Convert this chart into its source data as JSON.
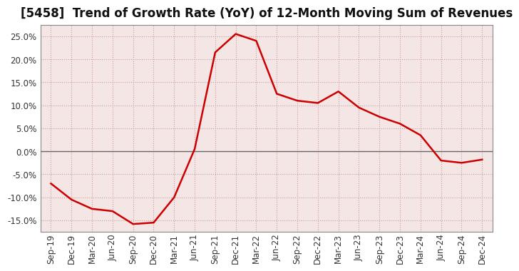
{
  "title": "[5458]  Trend of Growth Rate (YoY) of 12-Month Moving Sum of Revenues",
  "line_color": "#cc0000",
  "line_width": 1.8,
  "background_color": "#ffffff",
  "plot_bg_color": "#f5e6e6",
  "grid_color": "#cc9999",
  "zero_line_color": "#666666",
  "xlabels": [
    "Sep-19",
    "Dec-19",
    "Mar-20",
    "Jun-20",
    "Sep-20",
    "Dec-20",
    "Mar-21",
    "Jun-21",
    "Sep-21",
    "Dec-21",
    "Mar-22",
    "Jun-22",
    "Sep-22",
    "Dec-22",
    "Mar-23",
    "Jun-23",
    "Sep-23",
    "Dec-23",
    "Mar-24",
    "Jun-24",
    "Sep-24",
    "Dec-24"
  ],
  "yvalues": [
    -7.0,
    -10.5,
    -12.5,
    -13.0,
    -15.8,
    -15.5,
    -10.0,
    0.5,
    21.5,
    25.5,
    24.0,
    12.5,
    11.0,
    10.5,
    13.0,
    9.5,
    7.5,
    6.0,
    3.5,
    -2.0,
    -2.5,
    -1.8
  ],
  "ylim": [
    -17.5,
    27.5
  ],
  "yticks": [
    -15.0,
    -10.0,
    -5.0,
    0.0,
    5.0,
    10.0,
    15.0,
    20.0,
    25.0
  ],
  "title_fontsize": 12,
  "tick_fontsize": 8.5
}
